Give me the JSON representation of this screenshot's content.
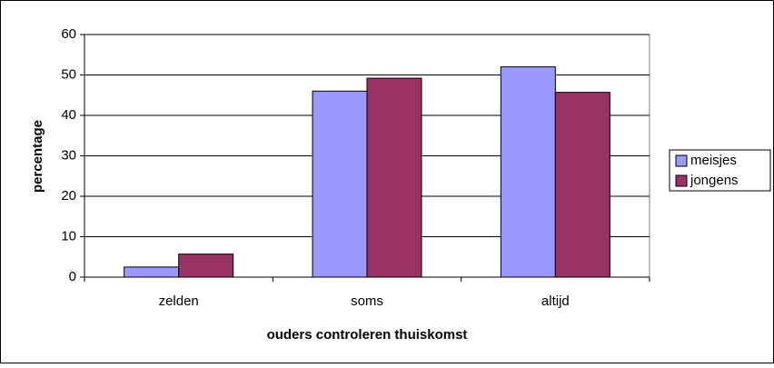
{
  "chart_data": {
    "type": "bar",
    "x_label": "ouders controleren thuiskomst",
    "y_label": "percentage",
    "categories": [
      "zelden",
      "soms",
      "altijd"
    ],
    "series": [
      {
        "name": "meisjes",
        "color": "#9999ff",
        "values": [
          2.5,
          46,
          52
        ]
      },
      {
        "name": "jongens",
        "color": "#993366",
        "values": [
          5.7,
          49.2,
          45.7
        ]
      }
    ],
    "ylim": [
      0,
      60
    ],
    "yticks": [
      0,
      10,
      20,
      30,
      40,
      50,
      60
    ],
    "grid": true,
    "legend": "right"
  }
}
